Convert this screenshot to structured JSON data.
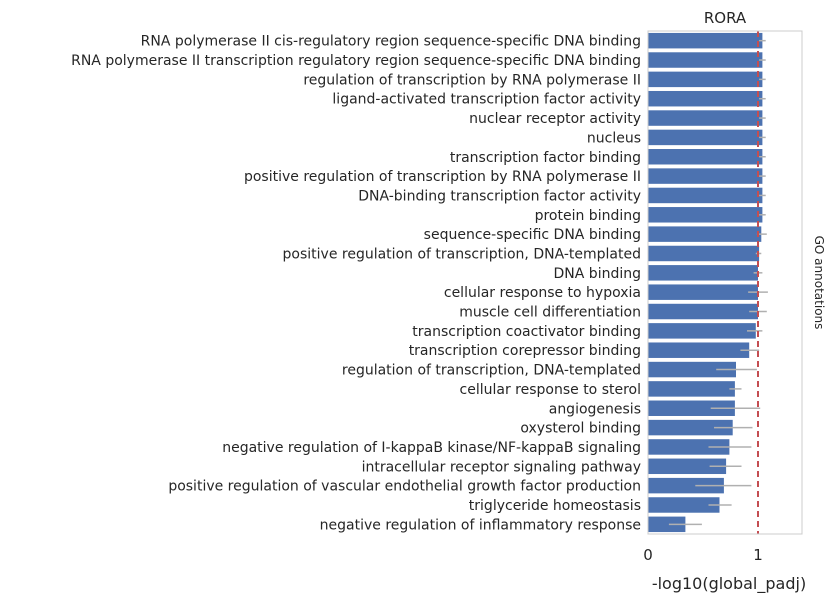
{
  "chart_data": {
    "type": "bar",
    "orientation": "horizontal",
    "title": "RORA",
    "xlabel": "-log10(global_padj)",
    "right_label": "GO annotations",
    "xlim": [
      0,
      1.4
    ],
    "xticks": [
      0,
      1
    ],
    "reference_line": 1,
    "bar_color": "#4c72b0",
    "errorbar_color": "#b0b0b0",
    "reference_line_color": "#c44e52",
    "categories": [
      "RNA polymerase II cis-regulatory region sequence-specific DNA binding",
      "RNA polymerase II transcription regulatory region sequence-specific DNA binding",
      "regulation of transcription by RNA polymerase II",
      "ligand-activated transcription factor activity",
      "nuclear receptor activity",
      "nucleus",
      "transcription factor binding",
      "positive regulation of transcription by RNA polymerase II",
      "DNA-binding transcription factor activity",
      "protein binding",
      "sequence-specific DNA binding",
      "positive regulation of transcription, DNA-templated",
      "DNA binding",
      "cellular response to hypoxia",
      "muscle cell differentiation",
      "transcription coactivator binding",
      "transcription corepressor binding",
      "regulation of transcription, DNA-templated",
      "cellular response to sterol",
      "angiogenesis",
      "oxysterol binding",
      "negative regulation of I-kappaB kinase/NF-kappaB signaling",
      "intracellular receptor signaling pathway",
      "positive regulation of vascular endothelial growth factor production",
      "triglyceride homeostasis",
      "negative regulation of inflammatory response"
    ],
    "values": [
      1.04,
      1.04,
      1.04,
      1.04,
      1.04,
      1.04,
      1.04,
      1.04,
      1.04,
      1.04,
      1.03,
      1.01,
      1.0,
      1.0,
      1.0,
      0.98,
      0.92,
      0.8,
      0.79,
      0.79,
      0.77,
      0.74,
      0.71,
      0.69,
      0.65,
      0.34
    ],
    "error_low": [
      1.01,
      1.01,
      1.01,
      1.01,
      1.01,
      1.01,
      1.01,
      1.01,
      1.01,
      1.01,
      0.99,
      0.98,
      0.96,
      0.91,
      0.92,
      0.9,
      0.84,
      0.62,
      0.74,
      0.57,
      0.6,
      0.55,
      0.56,
      0.43,
      0.55,
      0.19
    ],
    "error_high": [
      1.07,
      1.07,
      1.07,
      1.07,
      1.07,
      1.07,
      1.07,
      1.07,
      1.07,
      1.07,
      1.08,
      1.03,
      1.04,
      1.09,
      1.08,
      1.04,
      1.01,
      0.99,
      0.85,
      1.02,
      0.95,
      0.94,
      0.85,
      0.94,
      0.76,
      0.49
    ]
  }
}
